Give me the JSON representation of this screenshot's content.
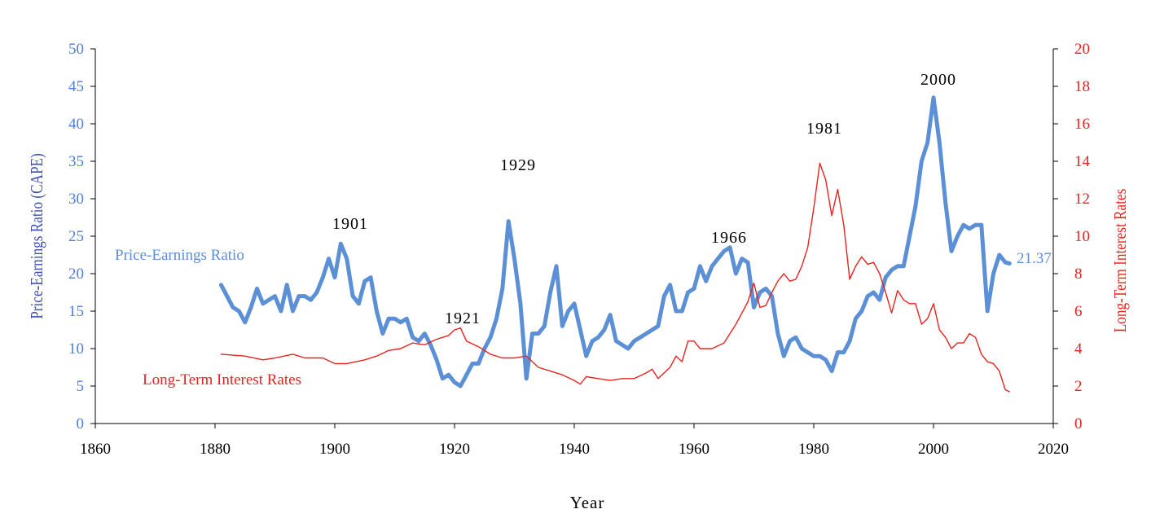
{
  "chart_data": {
    "type": "line",
    "title": "",
    "xlabel": "Year",
    "ylabel_left": "Price-Earnings Ratio (CAPE)",
    "ylabel_right": "Long-Term Interest Rates",
    "xlim": [
      1860,
      2020
    ],
    "ylim_left": [
      0,
      50
    ],
    "ylim_right": [
      0,
      20
    ],
    "x_ticks": [
      "1860",
      "1880",
      "1900",
      "1920",
      "1940",
      "1960",
      "1980",
      "2000",
      "2020"
    ],
    "y_left_ticks": [
      "0",
      "5",
      "10",
      "15",
      "20",
      "25",
      "30",
      "35",
      "40",
      "45",
      "50"
    ],
    "y_right_ticks": [
      "0",
      "2",
      "4",
      "6",
      "8",
      "10",
      "12",
      "14",
      "16",
      "18",
      "20"
    ],
    "grid": false,
    "annotations": [
      {
        "text": "1901",
        "x": 1901.5,
        "y": 25
      },
      {
        "text": "1921",
        "x": 1921,
        "y": 12.5
      },
      {
        "text": "1929",
        "x": 1929.5,
        "y": 32.5
      },
      {
        "text": "1966",
        "x": 1966,
        "y": 24
      },
      {
        "text": "1981",
        "x": 1981.5,
        "y": 38.5
      },
      {
        "text": "2000",
        "x": 2000,
        "y": 45
      }
    ],
    "last_value_label": "21.37",
    "series": [
      {
        "name": "Price-Earnings Ratio",
        "axis": "left",
        "color": "#5b8fd6",
        "x": [
          1881,
          1882,
          1883,
          1884,
          1885,
          1886,
          1887,
          1888,
          1889,
          1890,
          1891,
          1892,
          1893,
          1894,
          1895,
          1896,
          1897,
          1898,
          1899,
          1900,
          1901,
          1902,
          1903,
          1904,
          1905,
          1906,
          1907,
          1908,
          1909,
          1910,
          1911,
          1912,
          1913,
          1914,
          1915,
          1916,
          1917,
          1918,
          1919,
          1920,
          1921,
          1922,
          1923,
          1924,
          1925,
          1926,
          1927,
          1928,
          1929,
          1930,
          1931,
          1932,
          1933,
          1934,
          1935,
          1936,
          1937,
          1938,
          1939,
          1940,
          1941,
          1942,
          1943,
          1944,
          1945,
          1946,
          1947,
          1948,
          1949,
          1950,
          1951,
          1952,
          1953,
          1954,
          1955,
          1956,
          1957,
          1958,
          1959,
          1960,
          1961,
          1962,
          1963,
          1964,
          1965,
          1966,
          1967,
          1968,
          1969,
          1970,
          1971,
          1972,
          1973,
          1974,
          1975,
          1976,
          1977,
          1978,
          1979,
          1980,
          1981,
          1982,
          1983,
          1984,
          1985,
          1986,
          1987,
          1988,
          1989,
          1990,
          1991,
          1992,
          1993,
          1994,
          1995,
          1996,
          1997,
          1998,
          1999,
          2000,
          2001,
          2002,
          2003,
          2004,
          2005,
          2006,
          2007,
          2008,
          2009,
          2010,
          2011,
          2012,
          2012.7
        ],
        "values": [
          18.5,
          17,
          15.5,
          15,
          13.5,
          15.5,
          18,
          16,
          16.5,
          17,
          15,
          18.5,
          15,
          17,
          17,
          16.5,
          17.5,
          19.5,
          22,
          19.5,
          24,
          22,
          17,
          16,
          19,
          19.5,
          15,
          12,
          14,
          14,
          13.5,
          14,
          11.5,
          11,
          12,
          10.5,
          8.5,
          6,
          6.5,
          5.5,
          5,
          6.5,
          8,
          8,
          10,
          11.5,
          14,
          18,
          27,
          22,
          16,
          6,
          12,
          12,
          13,
          17.5,
          21,
          13,
          15,
          16,
          12.5,
          9,
          11,
          11.5,
          12.5,
          14.5,
          11,
          10.5,
          10,
          11,
          11.5,
          12,
          12.5,
          13,
          17,
          18.5,
          15,
          15,
          17.5,
          18,
          21,
          19,
          21,
          22,
          23,
          23.5,
          20,
          22,
          21.5,
          15.5,
          17.5,
          18,
          17,
          12,
          9,
          11,
          11.5,
          10,
          9.5,
          9,
          9,
          8.5,
          7,
          9.5,
          9.5,
          11,
          14,
          15,
          17,
          17.5,
          16.5,
          19.5,
          20.5,
          21,
          21,
          25,
          29,
          35,
          37.5,
          43.5,
          37.5,
          29.5,
          23,
          25,
          26.5,
          26,
          26.5,
          26.5,
          15,
          20,
          22.5,
          21.5,
          21.37
        ]
      },
      {
        "name": "Long-Term Interest Rates",
        "axis": "right",
        "color": "#e8231f",
        "x": [
          1881,
          1885,
          1888,
          1890,
          1893,
          1895,
          1898,
          1900,
          1902,
          1905,
          1907,
          1909,
          1911,
          1913,
          1915,
          1917,
          1919,
          1920,
          1921,
          1922,
          1924,
          1926,
          1928,
          1930,
          1932,
          1934,
          1936,
          1938,
          1940,
          1941,
          1942,
          1944,
          1946,
          1948,
          1950,
          1952,
          1953,
          1954,
          1956,
          1957,
          1958,
          1959,
          1960,
          1961,
          1963,
          1965,
          1966,
          1967,
          1968,
          1969,
          1970,
          1971,
          1972,
          1973,
          1974,
          1975,
          1976,
          1977,
          1978,
          1979,
          1980,
          1981,
          1982,
          1983,
          1984,
          1985,
          1986,
          1987,
          1988,
          1989,
          1990,
          1991,
          1992,
          1993,
          1994,
          1995,
          1996,
          1997,
          1998,
          1999,
          2000,
          2001,
          2002,
          2003,
          2004,
          2005,
          2006,
          2007,
          2008,
          2009,
          2010,
          2011,
          2012,
          2012.7
        ],
        "values": [
          3.7,
          3.6,
          3.4,
          3.5,
          3.7,
          3.5,
          3.5,
          3.2,
          3.2,
          3.4,
          3.6,
          3.9,
          4.0,
          4.3,
          4.2,
          4.5,
          4.7,
          5.0,
          5.1,
          4.4,
          4.1,
          3.7,
          3.5,
          3.5,
          3.6,
          3.0,
          2.8,
          2.6,
          2.3,
          2.1,
          2.5,
          2.4,
          2.3,
          2.4,
          2.4,
          2.7,
          2.9,
          2.4,
          3.0,
          3.6,
          3.3,
          4.4,
          4.4,
          4.0,
          4.0,
          4.3,
          4.8,
          5.3,
          5.9,
          6.5,
          7.5,
          6.2,
          6.3,
          7.0,
          7.6,
          8.0,
          7.6,
          7.7,
          8.4,
          9.4,
          11.5,
          13.9,
          13.0,
          11.1,
          12.5,
          10.6,
          7.7,
          8.4,
          8.9,
          8.5,
          8.6,
          8.0,
          7.0,
          5.9,
          7.1,
          6.6,
          6.4,
          6.4,
          5.3,
          5.6,
          6.4,
          5.0,
          4.6,
          4.0,
          4.3,
          4.3,
          4.8,
          4.6,
          3.7,
          3.3,
          3.2,
          2.8,
          1.8,
          1.7
        ]
      }
    ]
  }
}
